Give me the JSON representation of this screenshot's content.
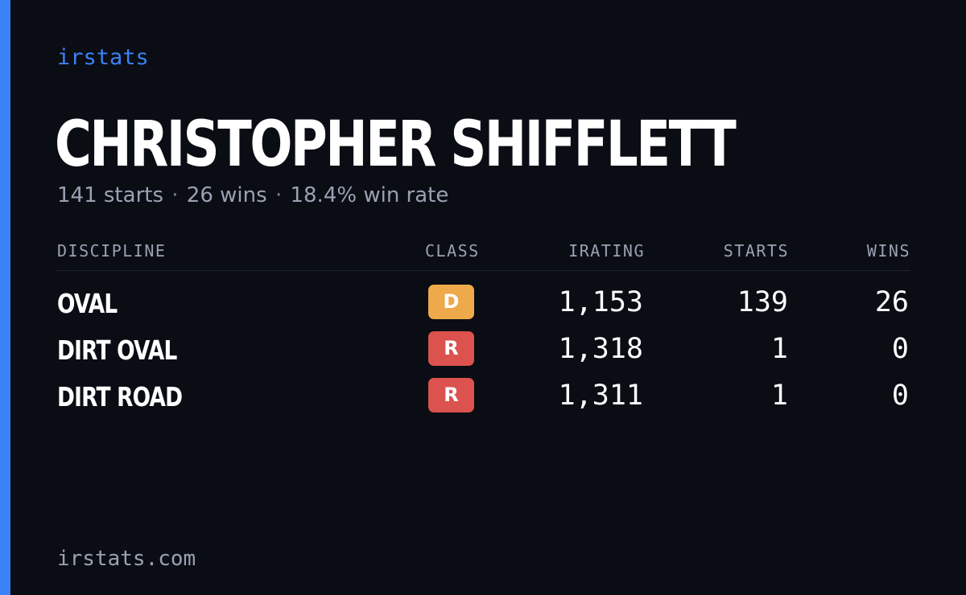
{
  "brand": "irstats",
  "driver": {
    "name": "CHRISTOPHER SHIFFLETT"
  },
  "summary": {
    "starts": "141 starts",
    "wins": "26 wins",
    "win_rate": "18.4% win rate",
    "separator": "·"
  },
  "table": {
    "headers": {
      "discipline": "DISCIPLINE",
      "class": "CLASS",
      "irating": "IRATING",
      "starts": "STARTS",
      "wins": "WINS"
    },
    "rows": [
      {
        "discipline": "OVAL",
        "class": "D",
        "class_color": "#eea94a",
        "irating": "1,153",
        "starts": "139",
        "wins": "26"
      },
      {
        "discipline": "DIRT OVAL",
        "class": "R",
        "class_color": "#dc524e",
        "irating": "1,318",
        "starts": "1",
        "wins": "0"
      },
      {
        "discipline": "DIRT ROAD",
        "class": "R",
        "class_color": "#dc524e",
        "irating": "1,311",
        "starts": "1",
        "wins": "0"
      }
    ]
  },
  "footer": {
    "url": "irstats.com"
  },
  "colors": {
    "background": "#0a0d14",
    "accent": "#3b82f6",
    "muted_text": "#9aa1b2",
    "class_d": "#eea94a",
    "class_r": "#dc524e"
  }
}
